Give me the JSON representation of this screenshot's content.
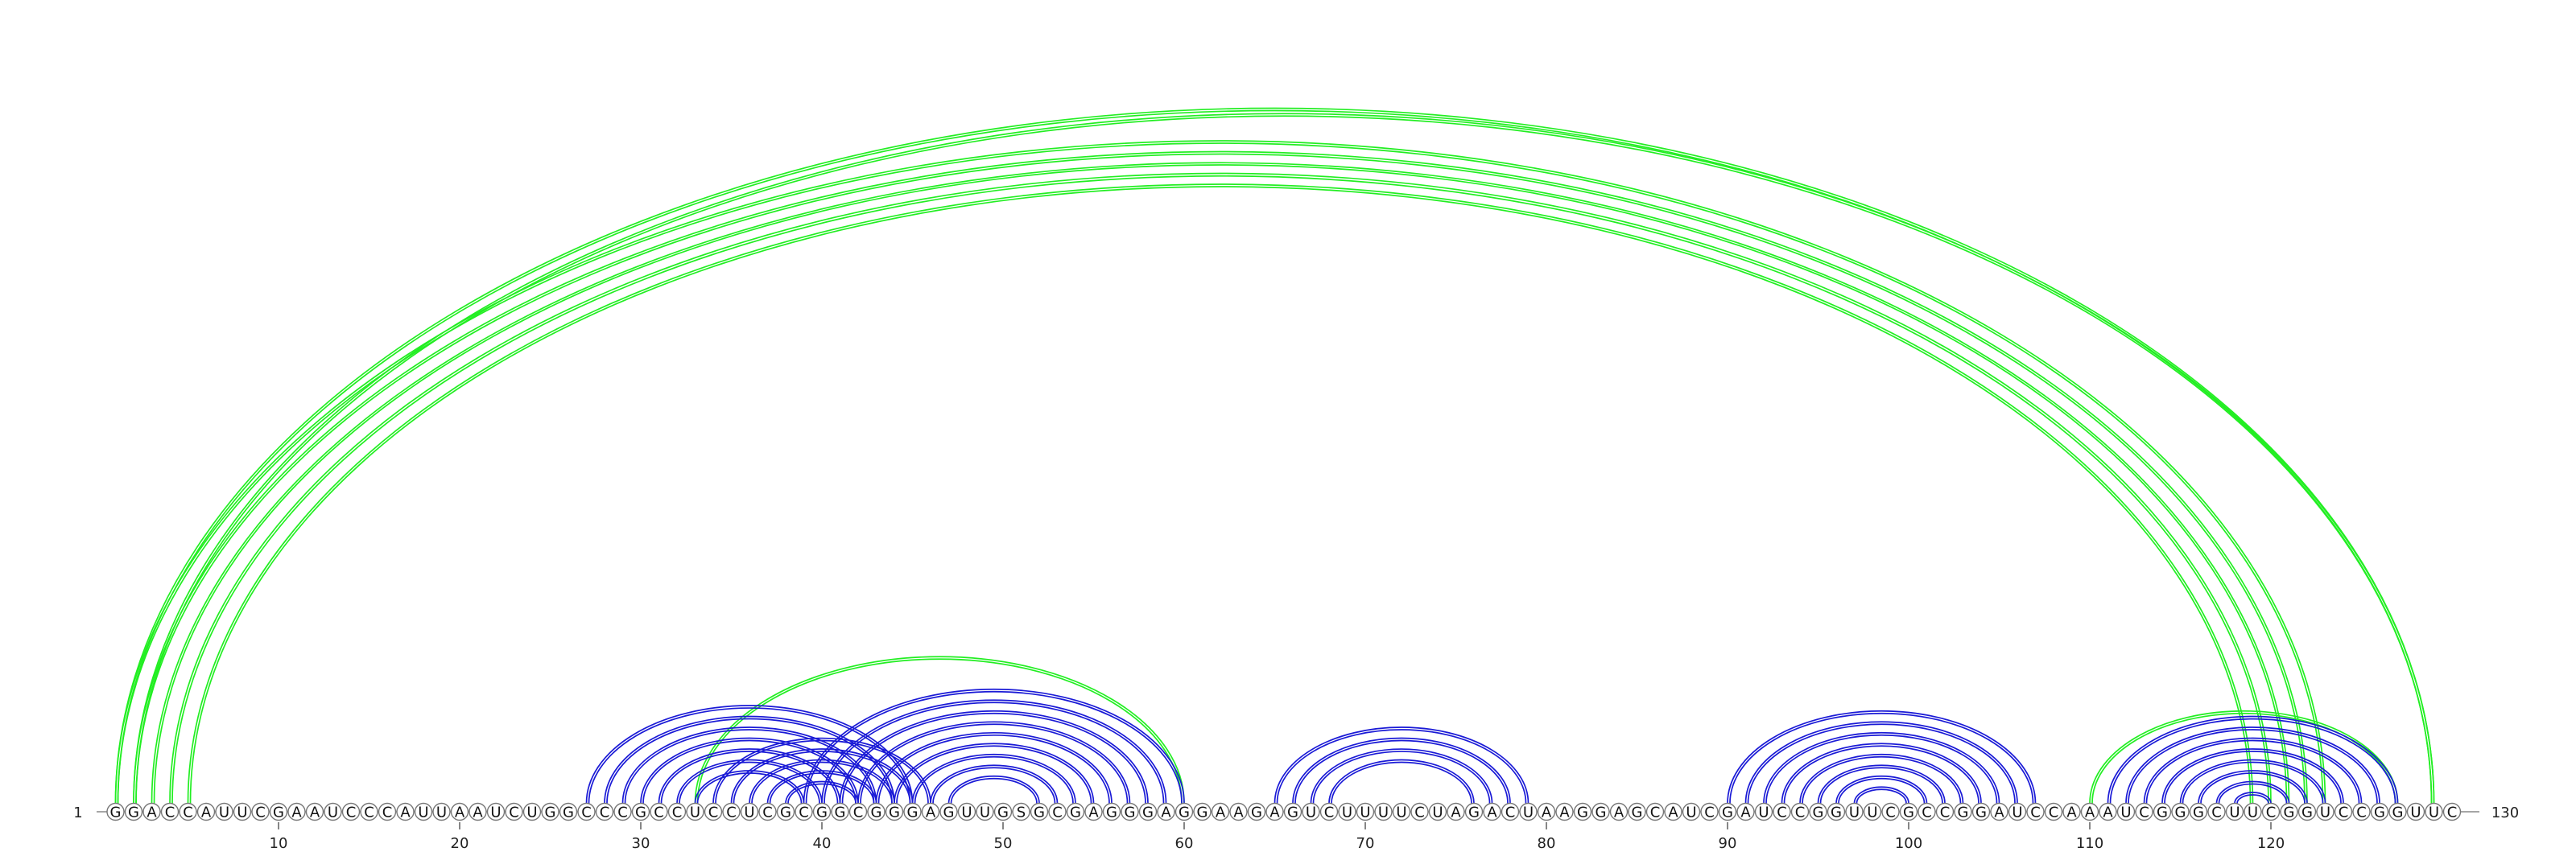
{
  "diagram": {
    "type": "rna-arc-diagram",
    "sequence": "GGACCAUUCGAAUCCCAUUAAUCUGGCCCGCCUCCUCGCGGCGGGAGUUGSGCGAGGGAGGAAGAGUCUUUUCUAGACUAAGGAGCAUCGAUCCGGUUCGCCGGAUCCAAAUCGGGCUUCGGUCCGGUUC",
    "start_label": "1",
    "end_label": "130",
    "ticks": [
      10,
      20,
      30,
      40,
      50,
      60,
      70,
      80,
      90,
      100,
      110,
      120
    ],
    "colors": {
      "green": "#22ee22",
      "blue": "#1a1ad6",
      "backbone": "#888888"
    },
    "structures": [
      {
        "name": "green",
        "color": "#22ee22",
        "pairs": [
          [
            1,
            123
          ],
          [
            2,
            122
          ],
          [
            3,
            121
          ],
          [
            4,
            120
          ],
          [
            5,
            119
          ],
          [
            1,
            129
          ],
          [
            2,
            129
          ],
          [
            33,
            60
          ],
          [
            110,
            127
          ]
        ]
      },
      {
        "name": "blue",
        "color": "#1a1ad6",
        "pairs": [
          [
            27,
            45
          ],
          [
            28,
            44
          ],
          [
            29,
            43
          ],
          [
            30,
            42
          ],
          [
            31,
            41
          ],
          [
            32,
            40
          ],
          [
            33,
            39
          ],
          [
            34,
            46
          ],
          [
            35,
            45
          ],
          [
            36,
            44
          ],
          [
            37,
            43
          ],
          [
            38,
            42
          ],
          [
            39,
            60
          ],
          [
            40,
            59
          ],
          [
            41,
            58
          ],
          [
            42,
            57
          ],
          [
            43,
            56
          ],
          [
            44,
            55
          ],
          [
            45,
            54
          ],
          [
            46,
            53
          ],
          [
            47,
            52
          ],
          [
            65,
            79
          ],
          [
            66,
            78
          ],
          [
            67,
            77
          ],
          [
            68,
            76
          ],
          [
            90,
            107
          ],
          [
            91,
            106
          ],
          [
            92,
            105
          ],
          [
            93,
            104
          ],
          [
            94,
            103
          ],
          [
            95,
            102
          ],
          [
            96,
            101
          ],
          [
            97,
            100
          ],
          [
            111,
            127
          ],
          [
            112,
            126
          ],
          [
            113,
            125
          ],
          [
            114,
            124
          ],
          [
            115,
            123
          ],
          [
            116,
            122
          ],
          [
            117,
            121
          ],
          [
            118,
            120
          ]
        ]
      }
    ]
  }
}
